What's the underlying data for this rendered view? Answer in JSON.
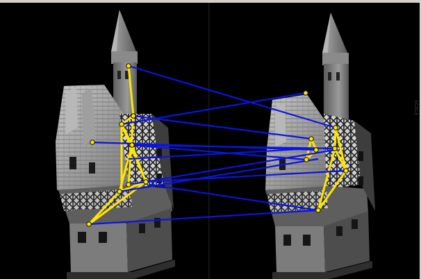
{
  "image": {
    "description_alt": "",
    "colors": {
      "frame": "#d4d0c8",
      "background": "#000000",
      "match_line": "#0a14e6",
      "tri_line": "#ffe600",
      "point_fill": "#ffe600",
      "point_stroke": "#101010"
    },
    "watermark_text": "SCALE"
  }
}
